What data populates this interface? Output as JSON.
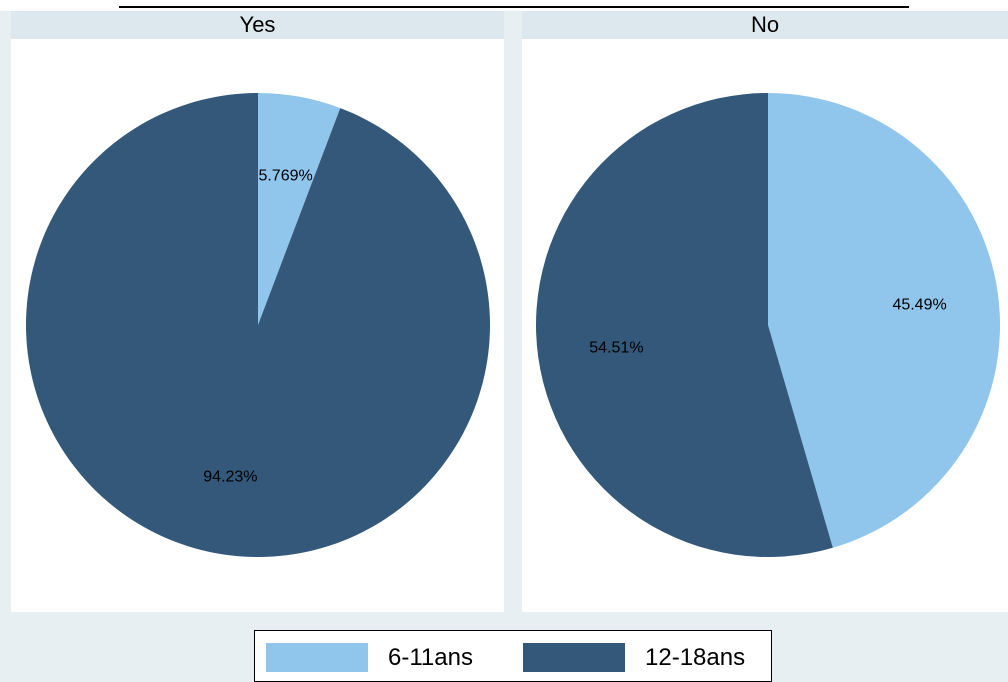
{
  "chart_data": {
    "type": "pie",
    "panels": [
      {
        "title": "Yes",
        "slices": [
          {
            "category": "6-11ans",
            "value": 5.769,
            "label": "5.769%"
          },
          {
            "category": "12-18ans",
            "value": 94.23,
            "label": "94.23%"
          }
        ]
      },
      {
        "title": "No",
        "slices": [
          {
            "category": "6-11ans",
            "value": 45.49,
            "label": "45.49%"
          },
          {
            "category": "12-18ans",
            "value": 54.51,
            "label": "54.51%"
          }
        ]
      }
    ],
    "legend": {
      "placement": "bottom",
      "items": [
        {
          "label": "6-11ans",
          "color": "#90c5ec"
        },
        {
          "label": "12-18ans",
          "color": "#335879"
        }
      ]
    },
    "colors": {
      "6-11ans": "#90c5ec",
      "12-18ans": "#335879"
    }
  }
}
